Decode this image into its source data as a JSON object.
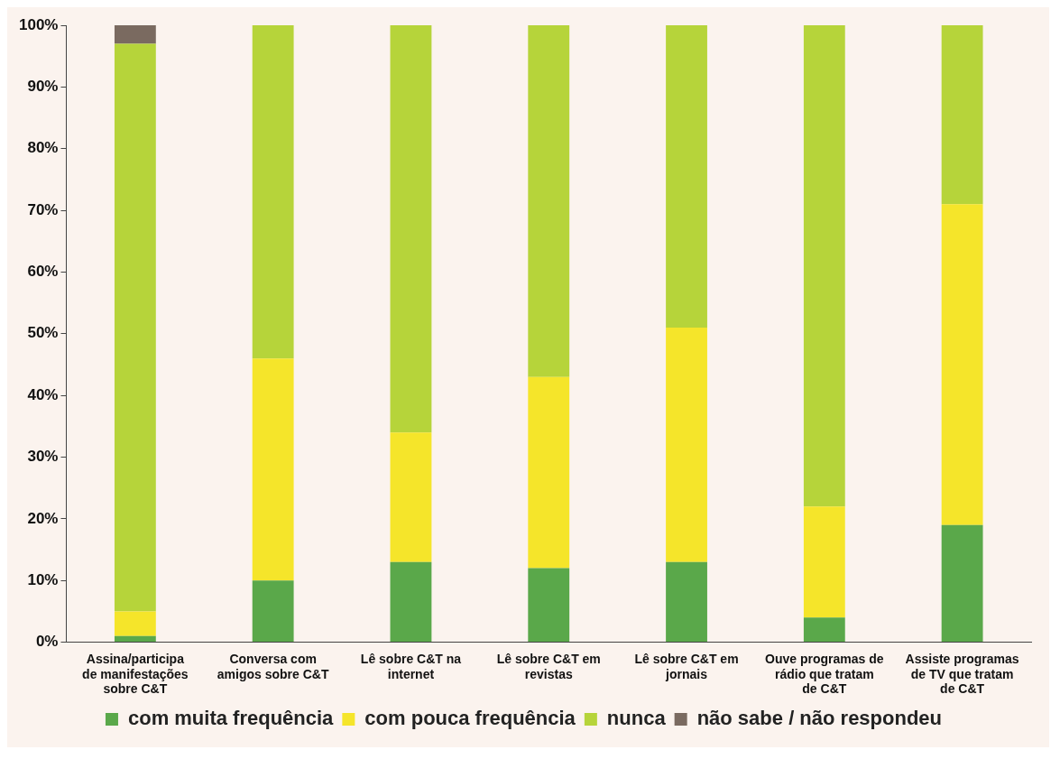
{
  "chart_data": {
    "type": "bar",
    "stacked": true,
    "categories": [
      "Assina/participa de manifestações sobre C&T",
      "Conversa com amigos sobre C&T",
      "Lê sobre C&T na internet",
      "Lê sobre C&T em revistas",
      "Lê sobre C&T em jornais",
      "Ouve programas de rádio que tratam de C&T",
      "Assiste programas de TV que tratam de C&T"
    ],
    "series": [
      {
        "name": "com muita frequência",
        "color": "#5aa84a",
        "values": [
          1,
          10,
          13,
          12,
          13,
          4,
          19
        ]
      },
      {
        "name": "com pouca frequência",
        "color": "#f5e52a",
        "values": [
          4,
          36,
          21,
          31,
          38,
          18,
          52
        ]
      },
      {
        "name": "nunca",
        "color": "#b6d43a",
        "values": [
          92,
          54,
          66,
          57,
          49,
          78,
          29
        ]
      },
      {
        "name": "não sabe / não respondeu",
        "color": "#7a6a60",
        "values": [
          3,
          0,
          0,
          0,
          0,
          0,
          0
        ]
      }
    ],
    "ylim": [
      0,
      100
    ],
    "yticks": [
      {
        "value": 0,
        "label": "0%"
      },
      {
        "value": 10,
        "label": "10%"
      },
      {
        "value": 20,
        "label": "20%"
      },
      {
        "value": 30,
        "label": "30%"
      },
      {
        "value": 40,
        "label": "40%"
      },
      {
        "value": 50,
        "label": "50%"
      },
      {
        "value": 60,
        "label": "60%"
      },
      {
        "value": 70,
        "label": "70%"
      },
      {
        "value": 80,
        "label": "80%"
      },
      {
        "value": 90,
        "label": "90%"
      },
      {
        "value": 100,
        "label": "100%"
      }
    ],
    "grid": false,
    "legend": "bottom"
  }
}
